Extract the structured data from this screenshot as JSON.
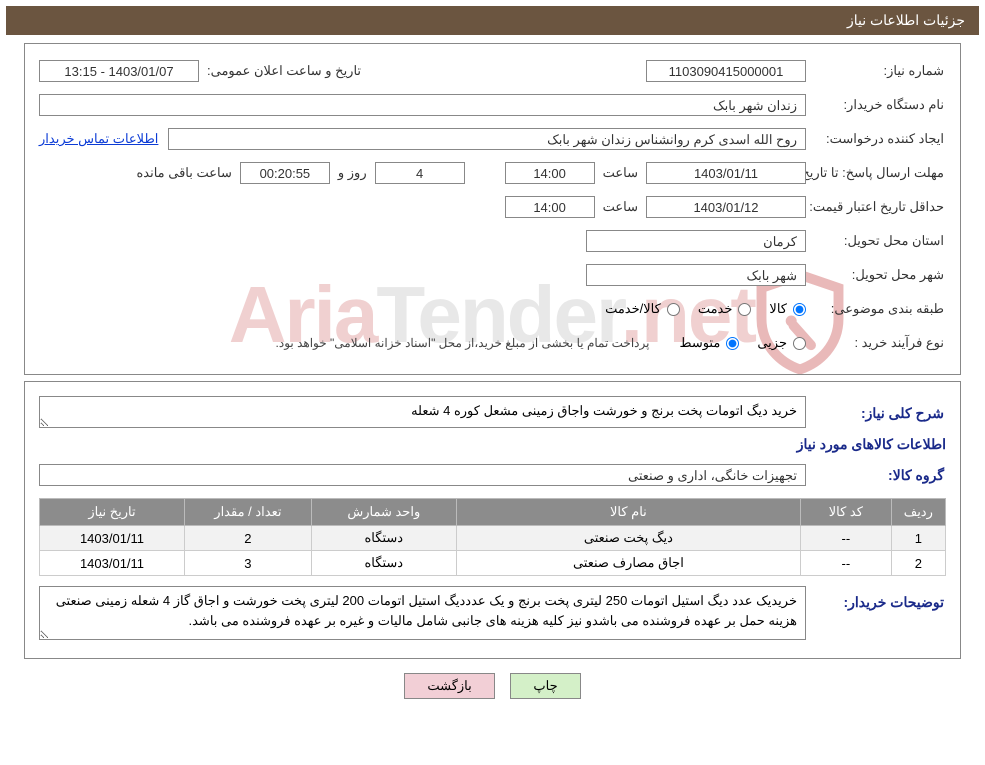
{
  "header": {
    "title": "جزئیات اطلاعات نیاز"
  },
  "watermark": {
    "text_a": "Aria",
    "text_b": "Tender",
    "text_c": ".net",
    "shield_stroke": "#d9534f"
  },
  "fields": {
    "request_no_label": "شماره نیاز:",
    "request_no": "1103090415000001",
    "announce_label": "تاریخ و ساعت اعلان عمومی:",
    "announce_value": "1403/01/07 - 13:15",
    "buyer_org_label": "نام دستگاه خریدار:",
    "buyer_org": "زندان شهر بابک",
    "creator_label": "ایجاد کننده درخواست:",
    "creator": "روح الله اسدی کرم روانشناس زندان شهر بابک",
    "contact_link": "اطلاعات تماس خریدار",
    "deadline_label": "مهلت ارسال پاسخ:  تا تاریخ:",
    "deadline_date": "1403/01/11",
    "time_label": "ساعت",
    "deadline_time": "14:00",
    "days_remaining": "4",
    "days_word": "روز و",
    "time_remaining": "00:20:55",
    "remaining_word": "ساعت باقی مانده",
    "validity_label": "حداقل تاریخ اعتبار قیمت: تا تاریخ:",
    "validity_date": "1403/01/12",
    "validity_time": "14:00",
    "province_label": "استان محل تحویل:",
    "province": "کرمان",
    "city_label": "شهر محل تحویل:",
    "city": "شهر بابک",
    "class_label": "طبقه بندی موضوعی:",
    "class_kala": "کالا",
    "class_khedmat": "خدمت",
    "class_kalakhedmat": "کالا/خدمت",
    "process_label": "نوع فرآیند خرید :",
    "process_minor": "جزیی",
    "process_medium": "متوسط",
    "payment_note": "پرداخت تمام یا بخشی از مبلغ خرید،از محل \"اسناد خزانه اسلامی\" خواهد بود.",
    "summary_label": "شرح کلی نیاز:",
    "summary": "خرید دیگ اتومات پخت برنج و خورشت واجاق زمینی مشعل کوره 4 شعله",
    "goods_title": "اطلاعات کالاهای مورد نیاز",
    "group_label": "گروه کالا:",
    "group": "تجهیزات خانگی، اداری و صنعتی",
    "buyer_notes_label": "توضیحات خریدار:",
    "buyer_notes": "خریدیک عدد دیگ استیل اتومات 250 لیتری پخت برنج و یک عدددیگ استیل اتومات 200 لیتری پخت خورشت و اجاق گاز 4 شعله زمینی صنعتی  هزینه حمل  بر عهده فروشنده می باشدو نیز کلیه هزینه های جانبی شامل مالیات و غیره بر عهده فروشنده می باشد."
  },
  "table": {
    "columns": [
      "ردیف",
      "کد کالا",
      "نام کالا",
      "واحد شمارش",
      "تعداد / مقدار",
      "تاریخ نیاز"
    ],
    "col_widths": [
      "6%",
      "10%",
      "38%",
      "16%",
      "14%",
      "16%"
    ],
    "rows": [
      [
        "1",
        "--",
        "دیگ پخت صنعتی",
        "دستگاه",
        "2",
        "1403/01/11"
      ],
      [
        "2",
        "--",
        "اجاق مصارف صنعتی",
        "دستگاه",
        "3",
        "1403/01/11"
      ]
    ],
    "header_bg": "#8c8c8c",
    "header_fg": "#ffffff",
    "row_alt_bg": "#f2f2f2"
  },
  "buttons": {
    "print": "چاپ",
    "back": "بازگشت"
  }
}
